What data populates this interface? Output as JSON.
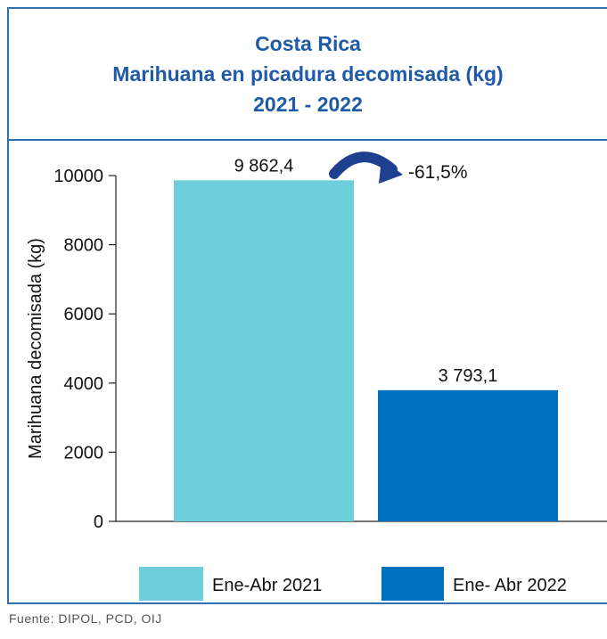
{
  "title_lines": [
    "Costa Rica",
    "Marihuana en picadura decomisada (kg)",
    "2021 - 2022"
  ],
  "source": "Fuente: DIPOL, PCD, OIJ",
  "change_label": "-61,5%",
  "colors": {
    "title": "#1f5aa6",
    "frame": "#2f6fb0",
    "arrow": "#1f3f8f"
  },
  "chart_data": {
    "type": "bar",
    "title": "Costa Rica Marihuana en picadura decomisada (kg) 2021 - 2022",
    "xlabel": "",
    "ylabel": "Marihuana decomisada (kg)",
    "ylim": [
      0,
      10000
    ],
    "yticks": [
      0,
      2000,
      4000,
      6000,
      8000,
      10000
    ],
    "grid": false,
    "legend": "bottom",
    "series": [
      {
        "name": "Ene-Abr 2021",
        "value": 9862.4,
        "label": "9 862,4",
        "color": "#6dcfdb"
      },
      {
        "name": "Ene- Abr 2022",
        "value": 3793.1,
        "label": "3 793,1",
        "color": "#0070c0"
      }
    ]
  }
}
